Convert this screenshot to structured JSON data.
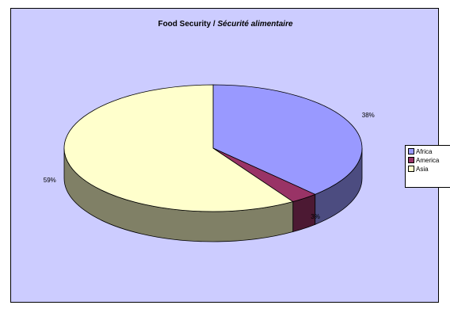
{
  "chart_data": {
    "type": "pie",
    "title": "Food Security / ",
    "title_italic": "Sécurité alimentaire",
    "three_d": true,
    "legend_position": "right",
    "slices": [
      {
        "name": "Africa",
        "value": 38,
        "label": "38%",
        "color": "#9999ff",
        "side_color": "#4c4c80"
      },
      {
        "name": "America",
        "value": 3,
        "label": "3%",
        "color": "#993366",
        "side_color": "#4c1933"
      },
      {
        "name": "Asia",
        "value": 59,
        "label": "59%",
        "color": "#ffffcc",
        "side_color": "#808066"
      }
    ]
  }
}
